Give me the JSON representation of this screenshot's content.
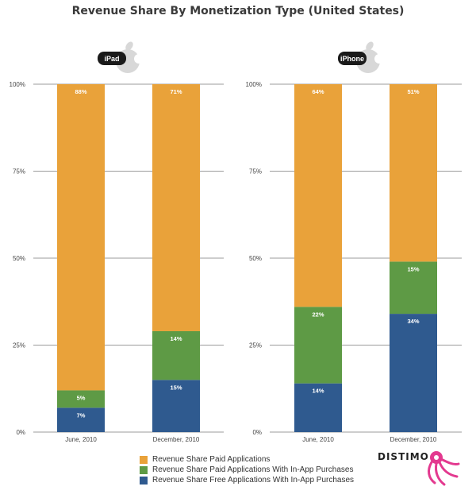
{
  "title": "Revenue Share By Monetization Type (United States)",
  "brand": "DISTIMO",
  "colors": {
    "paid": "#E9A23A",
    "paid_iap": "#5E9A45",
    "free_iap": "#2F5A8F",
    "badge": "#1a1a1a",
    "apple": "#d8d8d8"
  },
  "legend": [
    {
      "key": "paid",
      "label": "Revenue Share Paid Applications"
    },
    {
      "key": "paid_iap",
      "label": "Revenue Share Paid Applications With In-App Purchases"
    },
    {
      "key": "free_iap",
      "label": "Revenue Share Free Applications With In-App Purchases"
    }
  ],
  "chart_data": [
    {
      "type": "bar",
      "stacked": true,
      "title": "",
      "device": "iPad",
      "categories": [
        "June, 2010",
        "December, 2010"
      ],
      "series": [
        {
          "name": "Revenue Share Free Applications With In-App Purchases",
          "key": "free_iap",
          "values": [
            7,
            15
          ],
          "labels": [
            "7%",
            "15%"
          ]
        },
        {
          "name": "Revenue Share Paid Applications With In-App Purchases",
          "key": "paid_iap",
          "values": [
            5,
            14
          ],
          "labels": [
            "5%",
            "14%"
          ]
        },
        {
          "name": "Revenue Share Paid Applications",
          "key": "paid",
          "values": [
            88,
            71
          ],
          "labels": [
            "88%",
            "71%"
          ]
        }
      ],
      "yticks": [
        "0%",
        "25%",
        "50%",
        "75%",
        "100%"
      ],
      "ylim": [
        0,
        100
      ],
      "grid": true,
      "legend": "bottom"
    },
    {
      "type": "bar",
      "stacked": true,
      "title": "",
      "device": "iPhone",
      "categories": [
        "June, 2010",
        "December, 2010"
      ],
      "series": [
        {
          "name": "Revenue Share Free Applications With In-App Purchases",
          "key": "free_iap",
          "values": [
            14,
            34
          ],
          "labels": [
            "14%",
            "34%"
          ]
        },
        {
          "name": "Revenue Share Paid Applications With In-App Purchases",
          "key": "paid_iap",
          "values": [
            22,
            15
          ],
          "labels": [
            "22%",
            "15%"
          ]
        },
        {
          "name": "Revenue Share Paid Applications",
          "key": "paid",
          "values": [
            64,
            51
          ],
          "labels": [
            "64%",
            "51%"
          ]
        }
      ],
      "yticks": [
        "0%",
        "25%",
        "50%",
        "75%",
        "100%"
      ],
      "ylim": [
        0,
        100
      ],
      "grid": true,
      "legend": "bottom"
    }
  ]
}
